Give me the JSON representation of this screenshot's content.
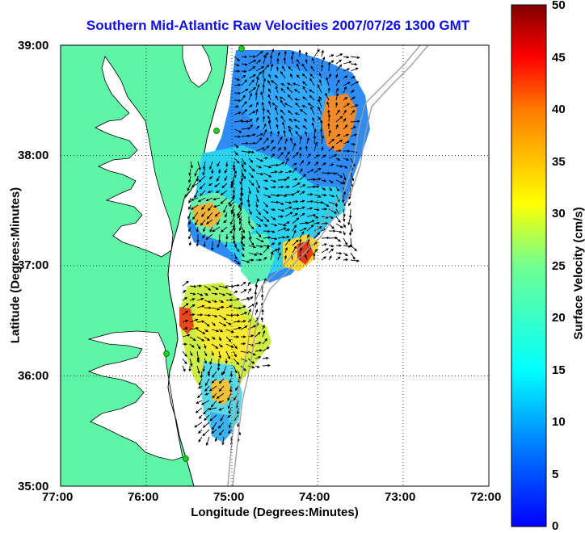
{
  "title": "Southern Mid-Atlantic Raw Velocities 2007/07/26 1300 GMT",
  "x_axis": {
    "label": "Longitude (Degrees:Minutes)",
    "ticks": [
      "77:00",
      "76:00",
      "75:00",
      "74:00",
      "73:00",
      "72:00"
    ]
  },
  "y_axis": {
    "label": "Latitude (Degrees:Minutes)",
    "ticks": [
      "39:00",
      "38:00",
      "37:00",
      "36:00",
      "35:00"
    ]
  },
  "colorbar": {
    "label": "Surface Velocity (cm/s)",
    "ticks": [
      "50",
      "45",
      "40",
      "35",
      "30",
      "25",
      "20",
      "15",
      "10",
      "5",
      "0"
    ],
    "range": [
      0,
      50
    ],
    "colormap": "jet"
  },
  "map": {
    "land_color": "#5ef5a6",
    "lon_range": [
      -77,
      -72
    ],
    "lat_range": [
      35,
      39
    ],
    "grid": "dotted",
    "bathymetry_color": "#a0a0a0",
    "site_color": "#22cc22",
    "arrow_color": "#000000"
  }
}
